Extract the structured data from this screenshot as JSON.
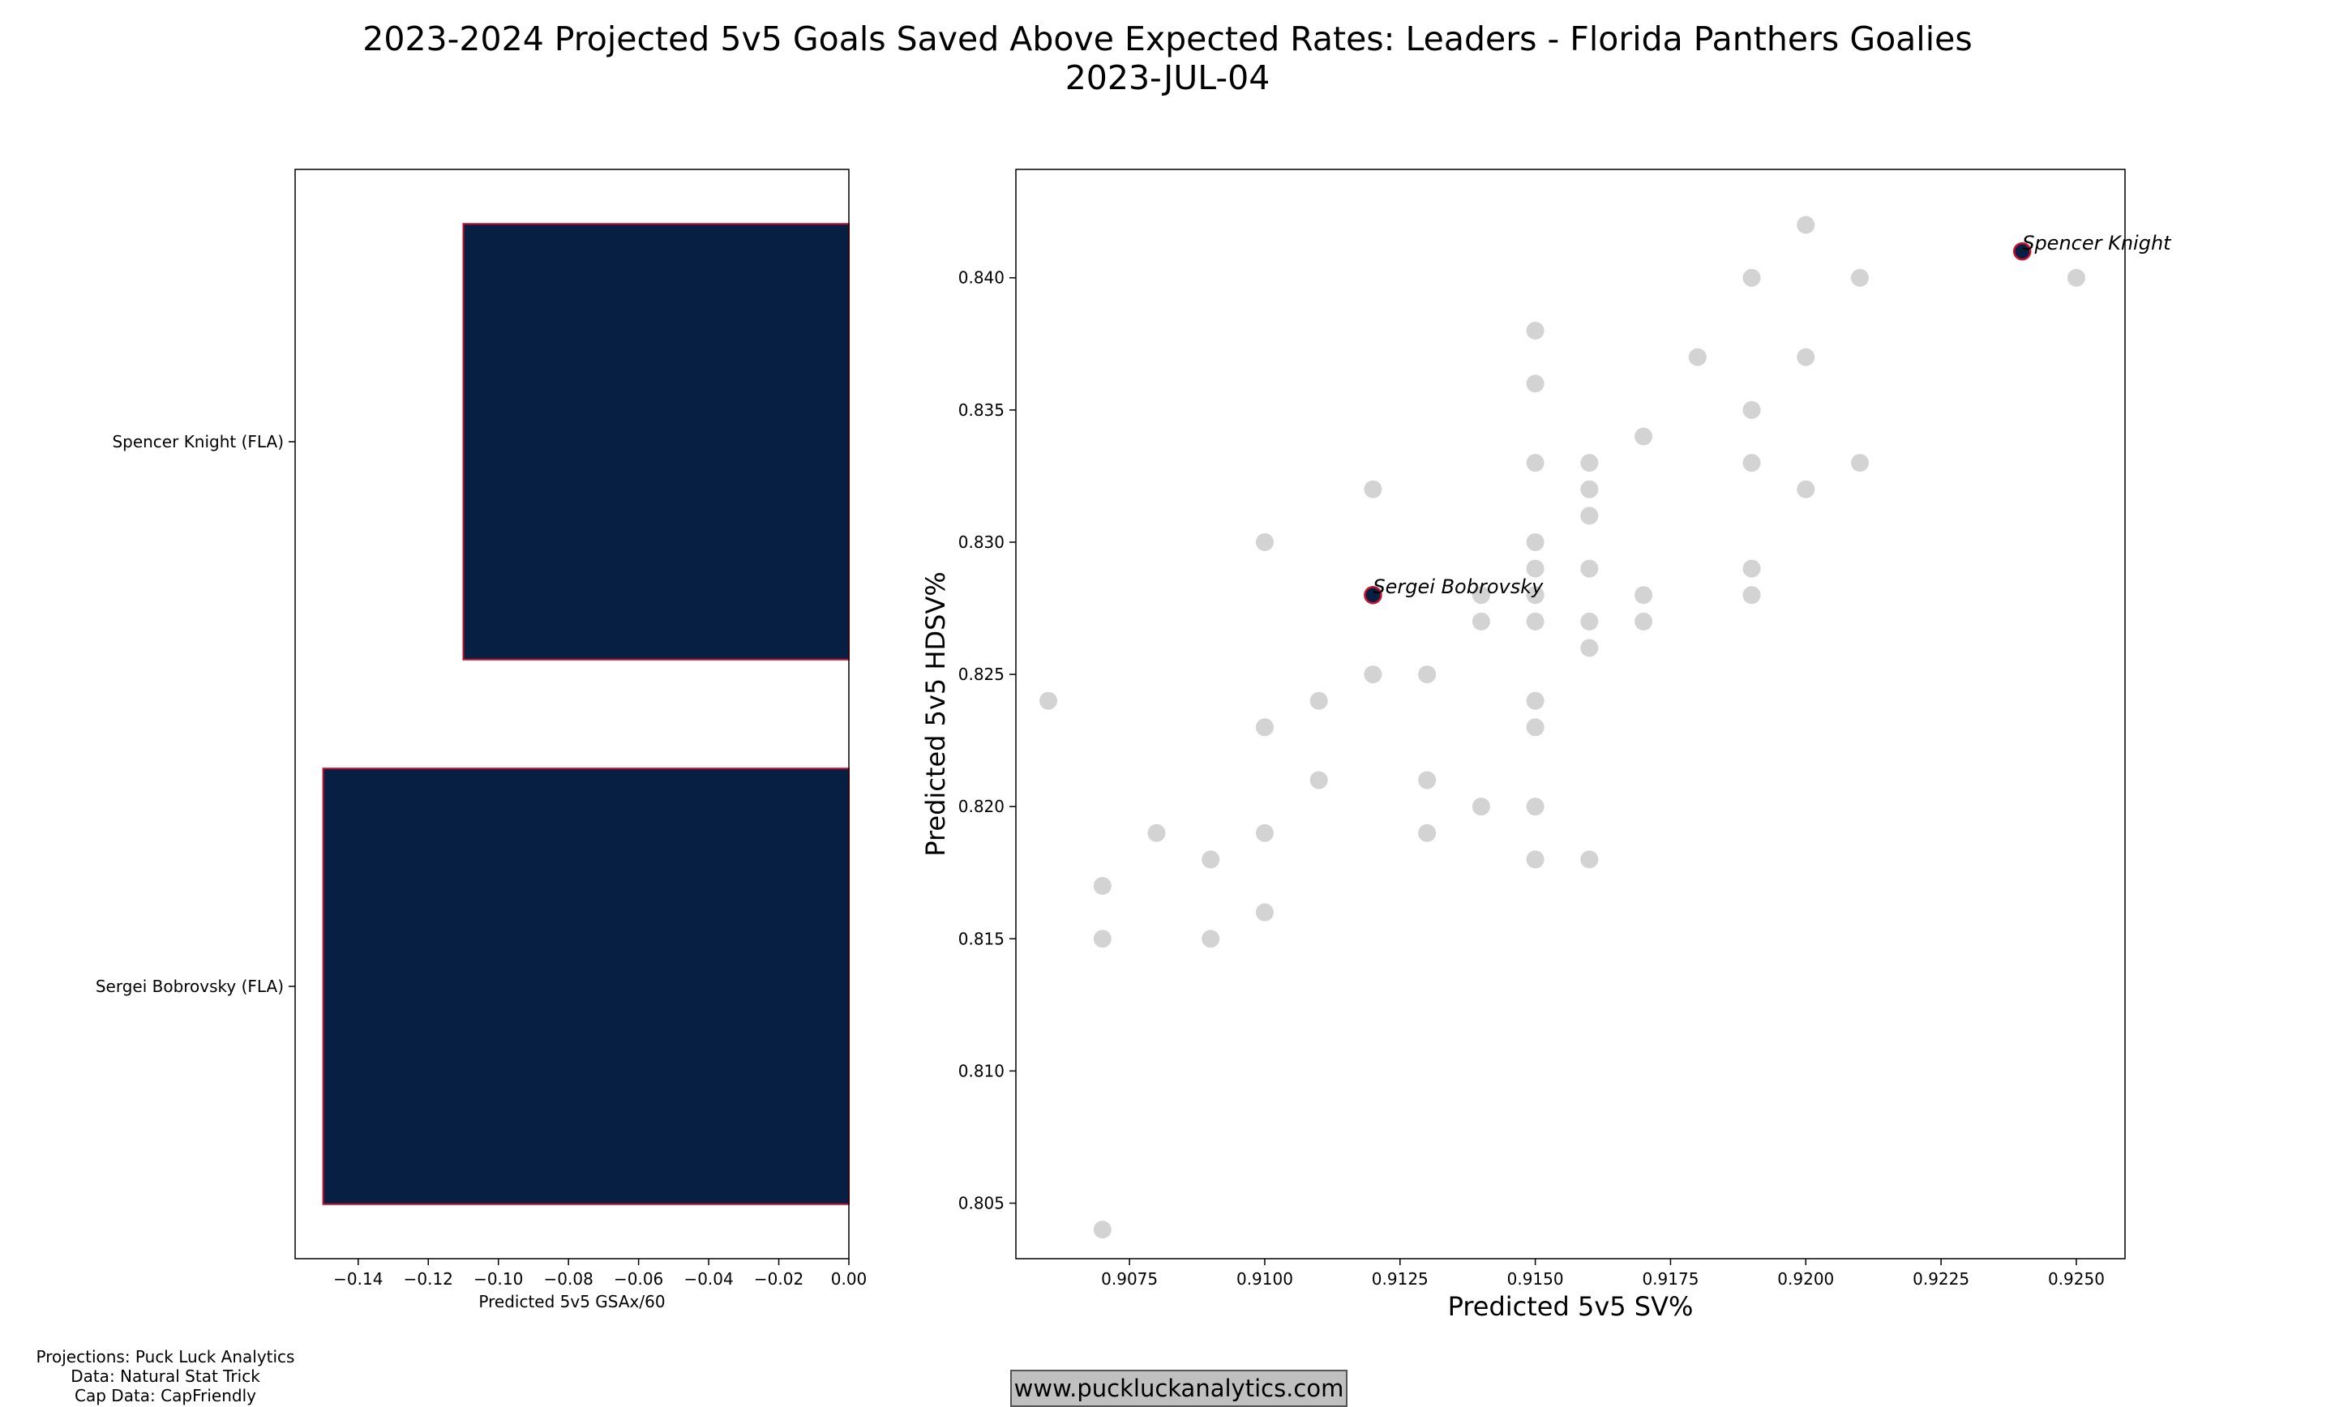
{
  "title": {
    "line1": "2023-2024 Projected 5v5 Goals Saved Above Expected Rates: Leaders - Florida Panthers Goalies",
    "line2": "2023-JUL-04"
  },
  "footer": {
    "projections": "Projections: Puck Luck Analytics",
    "data": "Data: Natural Stat Trick",
    "cap_data": "Cap Data: CapFriendly",
    "website": "www.puckluckanalytics.com"
  },
  "colors": {
    "bar_fill": "#061f42",
    "bar_edge": "#c8102e",
    "scatter_gray": "#d3d3d3",
    "highlight_fill": "#061f42",
    "highlight_edge": "#c8102e"
  },
  "chart_data": [
    {
      "type": "bar",
      "orientation": "horizontal",
      "categories": [
        "Spencer Knight (FLA)",
        "Sergei Bobrovsky (FLA)"
      ],
      "values": [
        -0.11,
        -0.15
      ],
      "xlabel": "Predicted 5v5 GSAx/60",
      "xlim": [
        -0.158,
        0.0
      ],
      "xticks": [
        "−0.14",
        "−0.12",
        "−0.10",
        "−0.08",
        "−0.06",
        "−0.04",
        "−0.02",
        "0.00"
      ],
      "xtick_values": [
        -0.14,
        -0.12,
        -0.1,
        -0.08,
        -0.06,
        -0.04,
        -0.02,
        0.0
      ]
    },
    {
      "type": "scatter",
      "xlabel": "Predicted 5v5 SV%",
      "ylabel": "Predicted 5v5 HDSV%",
      "xlim": [
        0.9054,
        0.9259
      ],
      "ylim": [
        0.8029,
        0.8441
      ],
      "xticks": [
        "0.9075",
        "0.9100",
        "0.9125",
        "0.9150",
        "0.9175",
        "0.9200",
        "0.9225",
        "0.9250"
      ],
      "xtick_values": [
        0.9075,
        0.91,
        0.9125,
        0.915,
        0.9175,
        0.92,
        0.9225,
        0.925
      ],
      "yticks": [
        "0.805",
        "0.810",
        "0.815",
        "0.820",
        "0.825",
        "0.830",
        "0.835",
        "0.840"
      ],
      "ytick_values": [
        0.805,
        0.81,
        0.815,
        0.82,
        0.825,
        0.83,
        0.835,
        0.84
      ],
      "league_points": [
        [
          0.906,
          0.824
        ],
        [
          0.907,
          0.817
        ],
        [
          0.907,
          0.815
        ],
        [
          0.907,
          0.804
        ],
        [
          0.908,
          0.819
        ],
        [
          0.909,
          0.818
        ],
        [
          0.909,
          0.815
        ],
        [
          0.91,
          0.83
        ],
        [
          0.91,
          0.823
        ],
        [
          0.91,
          0.819
        ],
        [
          0.91,
          0.816
        ],
        [
          0.911,
          0.824
        ],
        [
          0.911,
          0.821
        ],
        [
          0.912,
          0.832
        ],
        [
          0.912,
          0.825
        ],
        [
          0.913,
          0.825
        ],
        [
          0.913,
          0.821
        ],
        [
          0.913,
          0.819
        ],
        [
          0.914,
          0.828
        ],
        [
          0.914,
          0.827
        ],
        [
          0.914,
          0.82
        ],
        [
          0.915,
          0.838
        ],
        [
          0.915,
          0.836
        ],
        [
          0.915,
          0.833
        ],
        [
          0.915,
          0.83
        ],
        [
          0.915,
          0.829
        ],
        [
          0.915,
          0.828
        ],
        [
          0.915,
          0.827
        ],
        [
          0.915,
          0.824
        ],
        [
          0.915,
          0.823
        ],
        [
          0.915,
          0.82
        ],
        [
          0.915,
          0.818
        ],
        [
          0.916,
          0.833
        ],
        [
          0.916,
          0.832
        ],
        [
          0.916,
          0.831
        ],
        [
          0.916,
          0.829
        ],
        [
          0.916,
          0.827
        ],
        [
          0.916,
          0.826
        ],
        [
          0.916,
          0.818
        ],
        [
          0.917,
          0.834
        ],
        [
          0.917,
          0.828
        ],
        [
          0.917,
          0.827
        ],
        [
          0.918,
          0.837
        ],
        [
          0.919,
          0.84
        ],
        [
          0.919,
          0.835
        ],
        [
          0.919,
          0.833
        ],
        [
          0.919,
          0.829
        ],
        [
          0.919,
          0.828
        ],
        [
          0.92,
          0.842
        ],
        [
          0.92,
          0.837
        ],
        [
          0.92,
          0.832
        ],
        [
          0.921,
          0.84
        ],
        [
          0.921,
          0.833
        ],
        [
          0.925,
          0.84
        ]
      ],
      "highlighted": [
        {
          "name": "Spencer Knight",
          "x": 0.924,
          "y": 0.841
        },
        {
          "name": "Sergei Bobrovsky",
          "x": 0.912,
          "y": 0.828
        }
      ]
    }
  ]
}
